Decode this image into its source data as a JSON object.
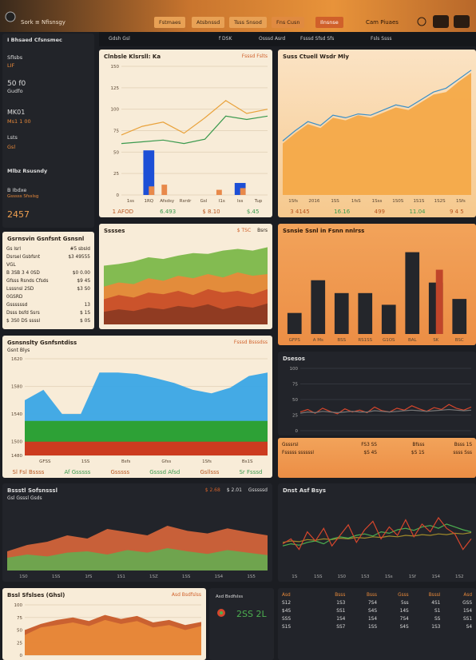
{
  "topbar": {
    "brand": "Sork ≡ Nfisnsgy",
    "tabs": [
      "Fstmaes",
      "Atsbnssd",
      "Tsss Snsod",
      "Fns Cusn",
      "Ilnsnse"
    ],
    "user": "Cam Piuaes"
  },
  "subbar": [
    "Gdsh Gsl",
    "f DSK",
    "Osssd Asrd",
    "Fsssd Sfsd Sfs",
    "Fsls Ssss"
  ],
  "sidebar": {
    "title": "I Bhsaed Cfsnsmec",
    "items": [
      {
        "label": "Sflsbs",
        "value": "LIF"
      },
      {
        "label": "50 f0",
        "value": "Gudfo"
      },
      {
        "label": "MK01",
        "value": "Ms1 1 00"
      },
      {
        "label": "Lsts",
        "value": "Gsl"
      }
    ],
    "section": "Mlbz Rsusndy",
    "sub": "B Ibdxe",
    "subnote": "Gsssss Sfsslsg",
    "total": "2457"
  },
  "panels": [
    {
      "title": "Clnbsle Klsrsll: Ka",
      "legend": [
        "Fsssd Fslts"
      ],
      "xlabels": [
        "1ss",
        "1RQ",
        "Afsdsy",
        "Rsrdr",
        "Gsl",
        "I1s",
        "Iss",
        "Tup"
      ],
      "footer": [
        "1 AFOD",
        "6.493",
        "$ 8.10",
        "$.45"
      ],
      "chart": {
        "ylim": [
          0,
          150
        ],
        "yticks": [
          0,
          25,
          50,
          75,
          100,
          125,
          150
        ],
        "series": [
          {
            "kind": "bar",
            "color": "#1d4fd6",
            "values": [
              null,
              52,
              null,
              null,
              null,
              null,
              14,
              null
            ]
          },
          {
            "kind": "bar",
            "color": "#e8894a",
            "values": [
              null,
              10,
              12,
              null,
              null,
              6,
              8,
              null
            ]
          },
          {
            "kind": "line",
            "color": "#e9a23b",
            "values": [
              70,
              80,
              85,
              72,
              90,
              110,
              95,
              100
            ]
          },
          {
            "kind": "line",
            "color": "#3b9a4e",
            "values": [
              60,
              62,
              64,
              60,
              65,
              92,
              88,
              92
            ]
          }
        ]
      }
    },
    {
      "title": "Suss Ctuell Wsdr Mly",
      "xlabels": [
        "1Sfs",
        "2016",
        "1SS",
        "1fsS",
        "1Sss",
        "1S0S",
        "1S1S",
        "1S2S",
        "1Sfs"
      ],
      "footer": [
        "3 4145",
        "16.16",
        "499",
        "11.04",
        "9 4 5"
      ],
      "chart": {
        "ylim": [
          0,
          100
        ],
        "series": [
          {
            "kind": "area",
            "color": "#f4a948",
            "values": [
              40,
              48,
              55,
              52,
              60,
              58,
              62,
              60,
              64,
              68,
              66,
              72,
              78,
              80,
              88,
              95
            ]
          },
          {
            "kind": "line",
            "color": "#3a8fc8",
            "values": [
              42,
              50,
              57,
              54,
              62,
              60,
              63,
              62,
              66,
              70,
              68,
              74,
              80,
              83,
              90,
              97
            ]
          }
        ]
      }
    },
    {
      "title": "Gsrnsvin Gsnfsnt Gsnsnl",
      "rows": [
        [
          "Gs lsrl",
          "#5 sbsld"
        ],
        [
          "Dsrsel Gsbfsnt VGL",
          "$3 49555"
        ],
        [
          "B 3SB 3 4 0SD",
          "$0 0.00"
        ],
        [
          "Gfsss Rsnds Cfsds",
          "$9 4S"
        ],
        [
          "Lsssnsl 2SD 0GSRD",
          "$3 S0"
        ],
        [
          "Gssssssd",
          "13"
        ],
        [
          "Dsss bsfd Ssrs",
          "$ 1S"
        ],
        [
          "$ 3S0 DS ssssl",
          "$ 0S"
        ]
      ]
    },
    {
      "title": "Sssses",
      "legend": [
        "$ TSC",
        "Bsrs"
      ],
      "chart": {
        "ylim": [
          0,
          100
        ],
        "series": [
          {
            "kind": "area",
            "color": "#7cb84a",
            "values": [
              70,
              72,
              75,
              80,
              78,
              82,
              85,
              84,
              88,
              90,
              88,
              92
            ]
          },
          {
            "kind": "area",
            "color": "#e8893a",
            "values": [
              45,
              50,
              48,
              55,
              52,
              58,
              55,
              60,
              56,
              62,
              58,
              60
            ]
          },
          {
            "kind": "area",
            "color": "#c9502a",
            "values": [
              30,
              35,
              32,
              38,
              36,
              40,
              35,
              42,
              38,
              40,
              36,
              42
            ]
          },
          {
            "kind": "area",
            "color": "#8c3a22",
            "values": [
              15,
              18,
              16,
              20,
              18,
              22,
              20,
              24,
              18,
              22,
              20,
              25
            ]
          }
        ]
      }
    },
    {
      "title": "Ssnsie Ssnl in Fsnn nnlrss",
      "xlabels": [
        "GFPS",
        "A Ms",
        "BSS",
        "RS1SS",
        "G1OS",
        "BAL",
        "SK",
        "BSC"
      ],
      "chart": {
        "ylim": [
          0,
          80
        ],
        "series": [
          {
            "kind": "bar",
            "color": "#24262b",
            "values": [
              18,
              46,
              35,
              35,
              25,
              70,
              44,
              30
            ]
          },
          {
            "kind": "bar",
            "color": "#c0452a",
            "values": [
              null,
              null,
              null,
              null,
              null,
              null,
              55,
              null
            ]
          }
        ]
      }
    },
    {
      "title": "Gsnsnslty Gsnfsntdiss",
      "subtitle": "Gsnt Blys",
      "legend": [
        "Fsssd Bsssdss"
      ],
      "xlabels": [
        "GFSS",
        "1SS",
        "Bsfs",
        "Gfss",
        "1Sfs",
        "Bs1S"
      ],
      "footer": [
        "Sl Fsl Bssss",
        "Af Gsssss",
        "Gsssss",
        "Gsssd Afsd",
        "Gsllsss",
        "Sr Fsssd"
      ],
      "chart": {
        "ylim": [
          1480,
          1620
        ],
        "yticks": [
          1480,
          1500,
          1540,
          1580,
          1620
        ],
        "series": [
          {
            "kind": "area",
            "color": "#3aa7e6",
            "values": [
              1560,
              1575,
              1540,
              1540,
              1600,
              1600,
              1598,
              1592,
              1585,
              1575,
              1570,
              1578,
              1595,
              1600
            ]
          },
          {
            "kind": "area",
            "color": "#2ca02c",
            "values": [
              1530,
              1530,
              1530,
              1530,
              1530,
              1530,
              1530,
              1530,
              1530,
              1530,
              1530,
              1530,
              1530,
              1530
            ]
          },
          {
            "kind": "area",
            "color": "#d5361f",
            "values": [
              1500,
              1500,
              1500,
              1500,
              1500,
              1500,
              1500,
              1500,
              1500,
              1500,
              1500,
              1500,
              1500,
              1500
            ]
          }
        ]
      }
    },
    {
      "title": "Dsesos",
      "chart": {
        "ylim": [
          0,
          100
        ],
        "yticks": [
          0,
          25,
          50,
          75,
          100
        ],
        "series": [
          {
            "kind": "line",
            "color": "#d6462c",
            "values": [
              30,
              34,
              28,
              36,
              31,
              27,
              35,
              30,
              33,
              29,
              38,
              32,
              30,
              36,
              33,
              40,
              35,
              31,
              37,
              34,
              42,
              36,
              33,
              38
            ]
          },
          {
            "kind": "line",
            "color": "#777777",
            "values": [
              28,
              30,
              29,
              31,
              30,
              29,
              30,
              31,
              30,
              30,
              32,
              31,
              30,
              31,
              32,
              33,
              32,
              31,
              32,
              33,
              34,
              33,
              32,
              33
            ]
          }
        ]
      }
    },
    {
      "rows": [
        [
          "Gsssrsl",
          "FS3 SS",
          "Bfsss",
          "Bsss 1S"
        ],
        [
          "Fsssss ssssssl",
          "$S 4S",
          "$S 1S",
          "ssss Sss"
        ]
      ]
    },
    {
      "title": "Bssstl Sofsnsssl",
      "subtitle": "Gsl Gsssl Gsds",
      "legend": [
        "$ 2.68",
        "$ 2.01",
        "Gsssssd"
      ],
      "xlabels": [
        "1S0",
        "1SS",
        "1fS",
        "1S1",
        "1SZ",
        "1SS",
        "1S4",
        "1S5"
      ],
      "chart": {
        "ylim": [
          0,
          100
        ],
        "series": [
          {
            "kind": "area",
            "color": "#d2643a",
            "values": [
              30,
              40,
              45,
              55,
              50,
              65,
              60,
              55,
              70,
              62,
              58,
              66,
              60,
              55
            ]
          },
          {
            "kind": "area",
            "color": "#6aa84f",
            "values": [
              20,
              25,
              22,
              28,
              30,
              25,
              32,
              28,
              35,
              30,
              26,
              32,
              28,
              24
            ]
          }
        ]
      }
    },
    {
      "title": "Dnst Asf Bsys",
      "xlabels": [
        "1S",
        "1SS",
        "1S0",
        "1S3",
        "1Ss",
        "1Sf",
        "1S4",
        "1S2"
      ],
      "chart": {
        "ylim": [
          0,
          100
        ],
        "series": [
          {
            "kind": "line",
            "color": "#a08a2a",
            "values": [
              40,
              42,
              41,
              44,
              43,
              45,
              44,
              46,
              45,
              47,
              46,
              48,
              47,
              49,
              48,
              50,
              49,
              51,
              50,
              52,
              51,
              53,
              52,
              54
            ]
          },
          {
            "kind": "line",
            "color": "#4caf50",
            "values": [
              35,
              38,
              36,
              40,
              42,
              38,
              45,
              48,
              46,
              50,
              52,
              49,
              55,
              53,
              58,
              60,
              57,
              62,
              64,
              60,
              66,
              62,
              58,
              55
            ]
          },
          {
            "kind": "line",
            "color": "#d6462c",
            "values": [
              38,
              45,
              30,
              55,
              42,
              60,
              35,
              50,
              65,
              40,
              58,
              70,
              45,
              62,
              50,
              72,
              48,
              66,
              55,
              75,
              60,
              52,
              30,
              45
            ]
          }
        ]
      }
    },
    {
      "title": "Bssl Sfslses (Ghsl)",
      "legend": [
        "Asd Bsdfslss"
      ],
      "chart": {
        "ylim": [
          0,
          100
        ],
        "yticks": [
          0,
          25,
          50,
          75,
          100
        ],
        "series": [
          {
            "kind": "area",
            "color": "#c75a28",
            "values": [
              50,
              62,
              70,
              75,
              68,
              80,
              72,
              78,
              65,
              70,
              60,
              66
            ]
          },
          {
            "kind": "area",
            "color": "#e8893a",
            "values": [
              40,
              55,
              60,
              65,
              58,
              70,
              62,
              68,
              55,
              60,
              50,
              58
            ]
          }
        ]
      }
    },
    {
      "stat": "2SS 2L",
      "title": "Asd Bsdfslss"
    },
    {
      "rows": [
        [
          "Asd",
          "Bsss",
          "Bsss",
          "Gsss",
          "Bsssl",
          "Asd"
        ],
        [
          "S12",
          "1S3",
          "7S4",
          "5ss",
          "4S1",
          "GSS"
        ],
        [
          "$4S",
          "SS1",
          "S4S",
          "14S",
          "S1",
          "1S4"
        ],
        [
          "SSS",
          "1S4",
          "1S4",
          "7S4",
          "SS",
          "SS1"
        ],
        [
          "S1S",
          "SS7",
          "1SS",
          "S4S",
          "1S3",
          "S4"
        ]
      ]
    }
  ]
}
